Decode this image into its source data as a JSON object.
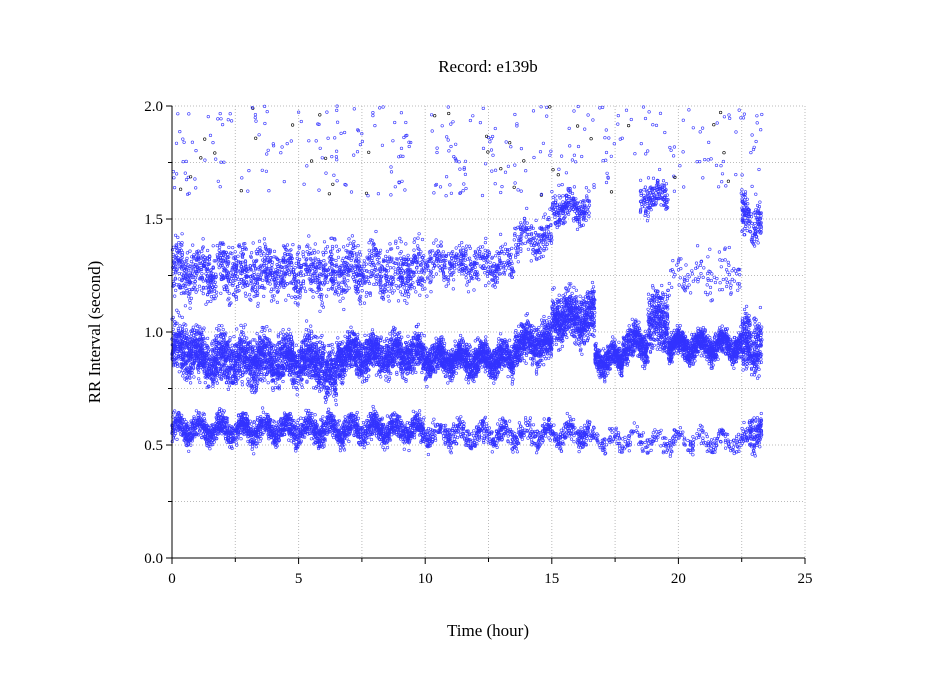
{
  "chart_data": {
    "type": "scatter",
    "title": "Record:  e139b",
    "xlabel": "Time (hour)",
    "ylabel": "RR Interval (second)",
    "xlim": [
      0,
      25
    ],
    "ylim": [
      0,
      2
    ],
    "xticks": [
      "0",
      "5",
      "10",
      "15",
      "20",
      "25"
    ],
    "xtick_values": [
      0,
      5,
      10,
      15,
      20,
      25
    ],
    "yticks": [
      "0.0",
      "0.5",
      "1.0",
      "1.5",
      "2.0"
    ],
    "ytick_values": [
      0,
      0.5,
      1.0,
      1.5,
      2.0
    ],
    "grid": true,
    "marker_color": "#3333ff",
    "outlier_color": "#000000",
    "record_duration_hours": 23.3,
    "series_description": "RR intervals rendered as point clouds; bands given as center/spread (seconds) over hour ranges with relative point density",
    "bands": [
      {
        "name": "main",
        "segments": [
          {
            "x": [
              0.0,
              1.0
            ],
            "center": 0.92,
            "spread": 0.16,
            "density": 1.0
          },
          {
            "x": [
              1.0,
              6.0
            ],
            "center": 0.88,
            "spread": 0.15,
            "density": 1.0
          },
          {
            "x": [
              6.0,
              6.5
            ],
            "center": 0.8,
            "spread": 0.15,
            "density": 1.0
          },
          {
            "x": [
              6.5,
              10.0
            ],
            "center": 0.9,
            "spread": 0.12,
            "density": 1.0
          },
          {
            "x": [
              10.0,
              13.5
            ],
            "center": 0.88,
            "spread": 0.1,
            "density": 1.0
          },
          {
            "x": [
              13.5,
              15.0
            ],
            "center": 0.95,
            "spread": 0.12,
            "density": 1.0
          },
          {
            "x": [
              15.0,
              16.7
            ],
            "center": 1.07,
            "spread": 0.15,
            "density": 1.1
          },
          {
            "x": [
              16.7,
              17.8
            ],
            "center": 0.88,
            "spread": 0.08,
            "density": 1.0
          },
          {
            "x": [
              17.8,
              18.8
            ],
            "center": 0.95,
            "spread": 0.1,
            "density": 1.0
          },
          {
            "x": [
              18.8,
              19.6
            ],
            "center": 1.05,
            "spread": 0.2,
            "density": 1.1
          },
          {
            "x": [
              19.6,
              22.5
            ],
            "center": 0.94,
            "spread": 0.08,
            "density": 1.0
          },
          {
            "x": [
              22.5,
              23.3
            ],
            "center": 0.95,
            "spread": 0.18,
            "density": 1.0
          }
        ]
      },
      {
        "name": "lower",
        "segments": [
          {
            "x": [
              0.0,
              10.0
            ],
            "center": 0.57,
            "spread": 0.08,
            "density": 0.6
          },
          {
            "x": [
              10.0,
              16.5
            ],
            "center": 0.55,
            "spread": 0.07,
            "density": 0.3
          },
          {
            "x": [
              16.5,
              23.3
            ],
            "center": 0.52,
            "spread": 0.06,
            "density": 0.15
          },
          {
            "x": [
              22.8,
              23.3
            ],
            "center": 0.58,
            "spread": 0.08,
            "density": 0.5
          }
        ]
      },
      {
        "name": "upper",
        "segments": [
          {
            "x": [
              0.0,
              10.0
            ],
            "center": 1.27,
            "spread": 0.17,
            "density": 0.45
          },
          {
            "x": [
              10.0,
              13.5
            ],
            "center": 1.3,
            "spread": 0.12,
            "density": 0.3
          },
          {
            "x": [
              13.5,
              15.0
            ],
            "center": 1.42,
            "spread": 0.12,
            "density": 0.3
          },
          {
            "x": [
              15.0,
              16.5
            ],
            "center": 1.55,
            "spread": 0.1,
            "density": 0.4
          },
          {
            "x": [
              18.5,
              19.6
            ],
            "center": 1.6,
            "spread": 0.1,
            "density": 0.35
          },
          {
            "x": [
              19.6,
              22.5
            ],
            "center": 1.25,
            "spread": 0.15,
            "density": 0.1
          },
          {
            "x": [
              22.5,
              23.3
            ],
            "center": 1.5,
            "spread": 0.14,
            "density": 0.5
          }
        ]
      },
      {
        "name": "outliers",
        "segments": [
          {
            "x": [
              0.0,
              23.3
            ],
            "center": 1.82,
            "spread": 0.18,
            "density": 0.04
          }
        ]
      }
    ]
  }
}
